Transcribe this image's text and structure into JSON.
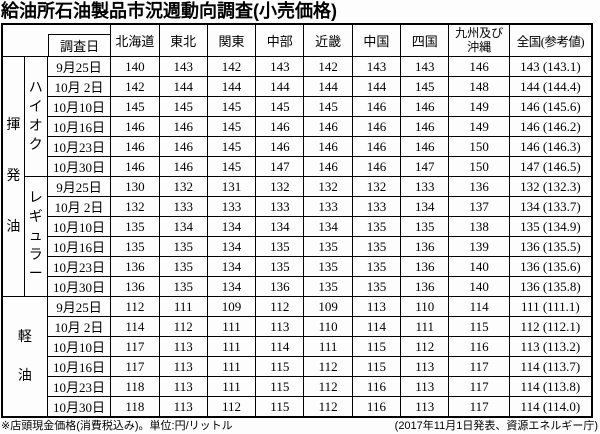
{
  "title": "給油所石油製品市況週動向調査(小売価格)",
  "labels": {
    "date": "調査日",
    "gasoline": "揮発油",
    "high_octane": "ハイオク",
    "regular": "レギュラー",
    "diesel": "軽油"
  },
  "chart_data": {
    "type": "table",
    "title": "給油所石油製品市況週動向調査(小売価格)",
    "unit": "円/リットル",
    "columns": [
      "調査日",
      "北海道",
      "東北",
      "関東",
      "中部",
      "近畿",
      "中国",
      "四国",
      "九州及び沖縄",
      "全国(参考値)"
    ],
    "regions": [
      "北海道",
      "東北",
      "関東",
      "中部",
      "近畿",
      "中国",
      "四国",
      "九州及び沖縄"
    ],
    "national_label": "全国(参考値)",
    "sections": [
      {
        "category": "揮発油",
        "subcategory": "ハイオク",
        "rows": [
          {
            "date": "9月25日",
            "values": [
              140,
              143,
              142,
              143,
              142,
              143,
              143,
              146
            ],
            "national": "143 (143.1)"
          },
          {
            "date": "10月 2日",
            "values": [
              142,
              144,
              144,
              144,
              144,
              144,
              145,
              148
            ],
            "national": "144 (144.4)"
          },
          {
            "date": "10月10日",
            "values": [
              145,
              145,
              145,
              145,
              145,
              146,
              146,
              149
            ],
            "national": "146 (145.6)"
          },
          {
            "date": "10月16日",
            "values": [
              146,
              146,
              145,
              146,
              146,
              146,
              146,
              149
            ],
            "national": "146 (146.2)"
          },
          {
            "date": "10月23日",
            "values": [
              146,
              146,
              145,
              146,
              146,
              146,
              146,
              150
            ],
            "national": "146 (146.3)"
          },
          {
            "date": "10月30日",
            "values": [
              146,
              146,
              145,
              147,
              146,
              146,
              147,
              150
            ],
            "national": "147 (146.5)"
          }
        ]
      },
      {
        "category": "揮発油",
        "subcategory": "レギュラー",
        "rows": [
          {
            "date": "9月25日",
            "values": [
              130,
              132,
              131,
              132,
              132,
              132,
              133,
              136
            ],
            "national": "132 (132.3)"
          },
          {
            "date": "10月 2日",
            "values": [
              132,
              133,
              133,
              133,
              133,
              133,
              134,
              137
            ],
            "national": "134 (133.7)"
          },
          {
            "date": "10月10日",
            "values": [
              135,
              134,
              134,
              134,
              134,
              135,
              135,
              138
            ],
            "national": "135 (134.9)"
          },
          {
            "date": "10月16日",
            "values": [
              135,
              135,
              134,
              135,
              135,
              135,
              136,
              139
            ],
            "national": "136 (135.5)"
          },
          {
            "date": "10月23日",
            "values": [
              136,
              135,
              134,
              135,
              135,
              135,
              136,
              140
            ],
            "national": "136 (135.6)"
          },
          {
            "date": "10月30日",
            "values": [
              136,
              135,
              134,
              136,
              135,
              135,
              136,
              140
            ],
            "national": "136 (135.8)"
          }
        ]
      },
      {
        "category": "軽油",
        "subcategory": null,
        "rows": [
          {
            "date": "9月25日",
            "values": [
              112,
              111,
              109,
              112,
              109,
              113,
              110,
              114
            ],
            "national": "111 (111.1)"
          },
          {
            "date": "10月 2日",
            "values": [
              114,
              112,
              111,
              113,
              110,
              114,
              111,
              115
            ],
            "national": "112 (112.1)"
          },
          {
            "date": "10月10日",
            "values": [
              117,
              113,
              111,
              114,
              111,
              115,
              112,
              116
            ],
            "national": "113 (113.2)"
          },
          {
            "date": "10月16日",
            "values": [
              117,
              113,
              111,
              115,
              112,
              115,
              113,
              117
            ],
            "national": "114 (113.7)"
          },
          {
            "date": "10月23日",
            "values": [
              118,
              113,
              111,
              115,
              112,
              116,
              113,
              117
            ],
            "national": "114 (113.8)"
          },
          {
            "date": "10月30日",
            "values": [
              118,
              113,
              112,
              115,
              112,
              116,
              113,
              117
            ],
            "national": "114 (114.0)"
          }
        ]
      }
    ]
  },
  "footer": {
    "note_left": "※店頭現金価格(消費税込み)。単位:円/リットル",
    "note_right": "(2017年11月1日発表、資源エネルギー庁)"
  }
}
